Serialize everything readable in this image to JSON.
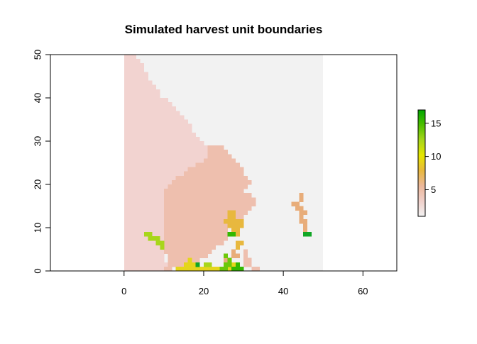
{
  "chart_data": {
    "type": "heatmap",
    "title": "Simulated harvest unit boundaries",
    "xlabel": "",
    "ylabel": "",
    "xlim": [
      -18.5,
      68.5
    ],
    "ylim": [
      0,
      50
    ],
    "x_ticks": [
      0,
      20,
      40,
      60
    ],
    "y_ticks": [
      0,
      10,
      20,
      30,
      40,
      50
    ],
    "raster_extent": {
      "x": [
        0,
        50
      ],
      "y": [
        0,
        50
      ]
    },
    "background_value": 0,
    "legend": {
      "position": "right",
      "range": [
        1,
        17
      ],
      "ticks": [
        5,
        10,
        15
      ]
    },
    "colors": {
      "background": "#f2f2f2",
      "unit_1": "#f2d3d0",
      "unit_2": "#eebfae",
      "unit_5": "#e8ad7a",
      "unit_7": "#e8b83e",
      "unit_9": "#e5d51c",
      "unit_11": "#a8d61a",
      "unit_13": "#6cc808",
      "unit_15": "#33b800",
      "unit_17": "#11a625",
      "colorbar_stops": [
        "#f2f2f2",
        "#f0d0ca",
        "#ecb89b",
        "#e8b83e",
        "#e6e600",
        "#a8d61a",
        "#4fc000",
        "#00a600"
      ]
    },
    "units": [
      {
        "value": 1,
        "rows": [
          [
            0,
            50,
            0,
            2
          ],
          [
            49,
            50,
            0,
            3
          ],
          [
            48,
            49,
            0,
            4
          ],
          [
            47,
            48,
            0,
            5
          ],
          [
            46,
            47,
            0,
            5
          ],
          [
            45,
            46,
            0,
            6
          ],
          [
            44,
            45,
            0,
            6
          ],
          [
            43,
            44,
            0,
            7
          ],
          [
            42,
            43,
            0,
            8
          ],
          [
            41,
            42,
            0,
            9
          ],
          [
            40,
            41,
            0,
            9
          ],
          [
            39,
            40,
            0,
            11
          ],
          [
            38,
            39,
            0,
            12
          ],
          [
            37,
            38,
            0,
            13
          ],
          [
            36,
            37,
            0,
            14
          ],
          [
            35,
            36,
            0,
            15
          ],
          [
            34,
            35,
            0,
            16
          ],
          [
            33,
            34,
            0,
            17
          ],
          [
            32,
            33,
            0,
            17
          ],
          [
            31,
            32,
            0,
            18
          ],
          [
            30,
            31,
            0,
            19
          ],
          [
            29,
            30,
            0,
            20
          ],
          [
            28,
            29,
            0,
            21
          ],
          [
            27,
            28,
            0,
            21
          ],
          [
            26,
            27,
            0,
            21
          ],
          [
            25,
            26,
            0,
            20
          ],
          [
            24,
            25,
            0,
            18
          ],
          [
            23,
            24,
            0,
            16
          ],
          [
            22,
            23,
            0,
            15
          ],
          [
            21,
            22,
            0,
            13
          ],
          [
            20,
            21,
            0,
            12
          ],
          [
            19,
            20,
            0,
            11
          ],
          [
            18,
            19,
            0,
            10
          ],
          [
            0,
            18,
            0,
            10
          ],
          [
            1,
            2,
            10,
            11
          ]
        ]
      },
      {
        "value": 2,
        "rows": [
          [
            0,
            1,
            32,
            34
          ],
          [
            1,
            3,
            30,
            32
          ],
          [
            3,
            5,
            30,
            31
          ],
          [
            18,
            19,
            10,
            30
          ],
          [
            19,
            20,
            11,
            31
          ],
          [
            20,
            21,
            12,
            32
          ],
          [
            21,
            22,
            13,
            31
          ],
          [
            22,
            23,
            15,
            30
          ],
          [
            23,
            24,
            16,
            30
          ],
          [
            24,
            25,
            18,
            29
          ],
          [
            25,
            26,
            20,
            28
          ],
          [
            26,
            27,
            21,
            27
          ],
          [
            27,
            28,
            21,
            26
          ],
          [
            28,
            29,
            21,
            25
          ],
          [
            17,
            18,
            10,
            32
          ],
          [
            16,
            17,
            10,
            33
          ],
          [
            15,
            16,
            10,
            33
          ],
          [
            14,
            15,
            10,
            32
          ],
          [
            13,
            14,
            10,
            31
          ],
          [
            12,
            13,
            10,
            30
          ],
          [
            11,
            12,
            10,
            28
          ],
          [
            10,
            11,
            10,
            26
          ],
          [
            9,
            10,
            10,
            26
          ],
          [
            8,
            9,
            10,
            27
          ],
          [
            7,
            8,
            10,
            26
          ],
          [
            6,
            7,
            10,
            25
          ],
          [
            5,
            6,
            10,
            23
          ],
          [
            4,
            5,
            10,
            22
          ],
          [
            3,
            4,
            11,
            21
          ],
          [
            2,
            3,
            11,
            19
          ],
          [
            1,
            2,
            11,
            16
          ],
          [
            0,
            1,
            10,
            12
          ]
        ]
      },
      {
        "value": 5,
        "rows": [
          [
            16,
            18,
            44,
            45
          ],
          [
            15,
            16,
            42,
            44
          ],
          [
            14,
            15,
            43,
            45
          ],
          [
            13,
            14,
            44,
            46
          ],
          [
            12,
            13,
            44,
            45
          ],
          [
            11,
            12,
            44,
            46
          ],
          [
            10,
            11,
            45,
            46
          ],
          [
            9,
            10,
            45,
            46
          ],
          [
            2,
            3,
            25,
            27
          ],
          [
            3,
            4,
            27,
            29
          ],
          [
            4,
            5,
            27,
            28
          ]
        ]
      },
      {
        "value": 7,
        "rows": [
          [
            12,
            14,
            26,
            28
          ],
          [
            11,
            12,
            25,
            30
          ],
          [
            10,
            11,
            26,
            30
          ],
          [
            9,
            10,
            27,
            29
          ],
          [
            8,
            9,
            28,
            29
          ],
          [
            6,
            7,
            28,
            30
          ],
          [
            5,
            6,
            28,
            29
          ]
        ]
      },
      {
        "value": 9,
        "rows": [
          [
            0,
            1,
            13,
            24
          ],
          [
            1,
            2,
            15,
            18
          ],
          [
            2,
            3,
            16,
            17
          ],
          [
            0,
            1,
            26,
            29
          ],
          [
            1,
            2,
            27,
            28
          ]
        ]
      },
      {
        "value": 11,
        "rows": [
          [
            8,
            9,
            5,
            7
          ],
          [
            7,
            8,
            6,
            9
          ],
          [
            6,
            7,
            8,
            10
          ],
          [
            5,
            6,
            9,
            10
          ],
          [
            1,
            2,
            20,
            22
          ]
        ]
      },
      {
        "value": 13,
        "rows": [
          [
            3,
            4,
            25,
            26
          ],
          [
            2,
            3,
            26,
            27
          ],
          [
            1,
            2,
            25,
            27
          ],
          [
            0,
            1,
            24,
            26
          ]
        ]
      },
      {
        "value": 15,
        "rows": [
          [
            8,
            9,
            26,
            28
          ],
          [
            0,
            1,
            27,
            30
          ],
          [
            1,
            2,
            28,
            29
          ]
        ]
      },
      {
        "value": 17,
        "rows": [
          [
            8,
            9,
            45,
            47
          ],
          [
            1,
            2,
            18,
            19
          ]
        ]
      }
    ]
  }
}
